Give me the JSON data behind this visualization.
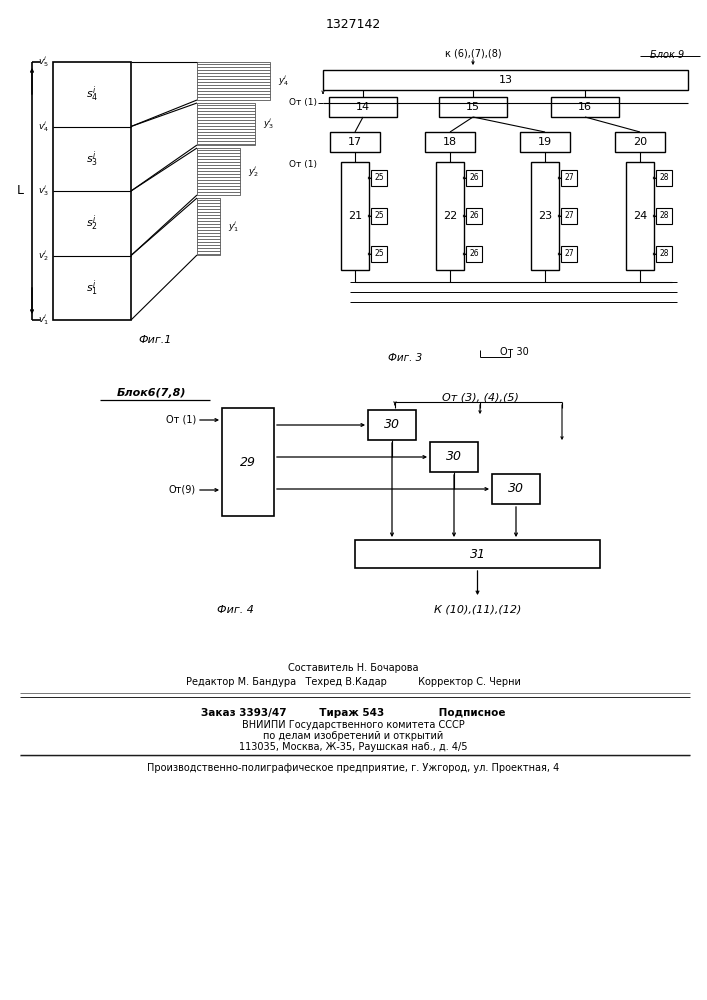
{
  "title": "1327142",
  "fig1_label": "Фиг.1",
  "fig3_label": "Фиг. 3",
  "fig4_label": "Фиг. 4",
  "footer_line1": "Составитель Н. Бочарова",
  "footer_line2": "Редактор М. Бандура   Техред В.Кадар          Корректор С. Черни",
  "footer_line3": "Заказ 3393/47         Тираж 543               Подписное",
  "footer_line4": "ВНИИПИ Государственного комитета СССР",
  "footer_line5": "по делам изобретений и открытий",
  "footer_line6": "113035, Москва, Ж-35, Раушская наб., д. 4/5",
  "footer_line7": "Производственно-полиграфическое предприятие, г. Ужгород, ул. Проектная, 4",
  "от1": "От (1)",
  "от9": "От(9)",
  "от345": "От (3), (4),(5)",
  "к678": "к (6),(7),(8)",
  "блок9": "Блок 9",
  "блок678": "Блок6(7,8)",
  "к101112": "К (10),(11),(12)",
  "от30": "От 30"
}
